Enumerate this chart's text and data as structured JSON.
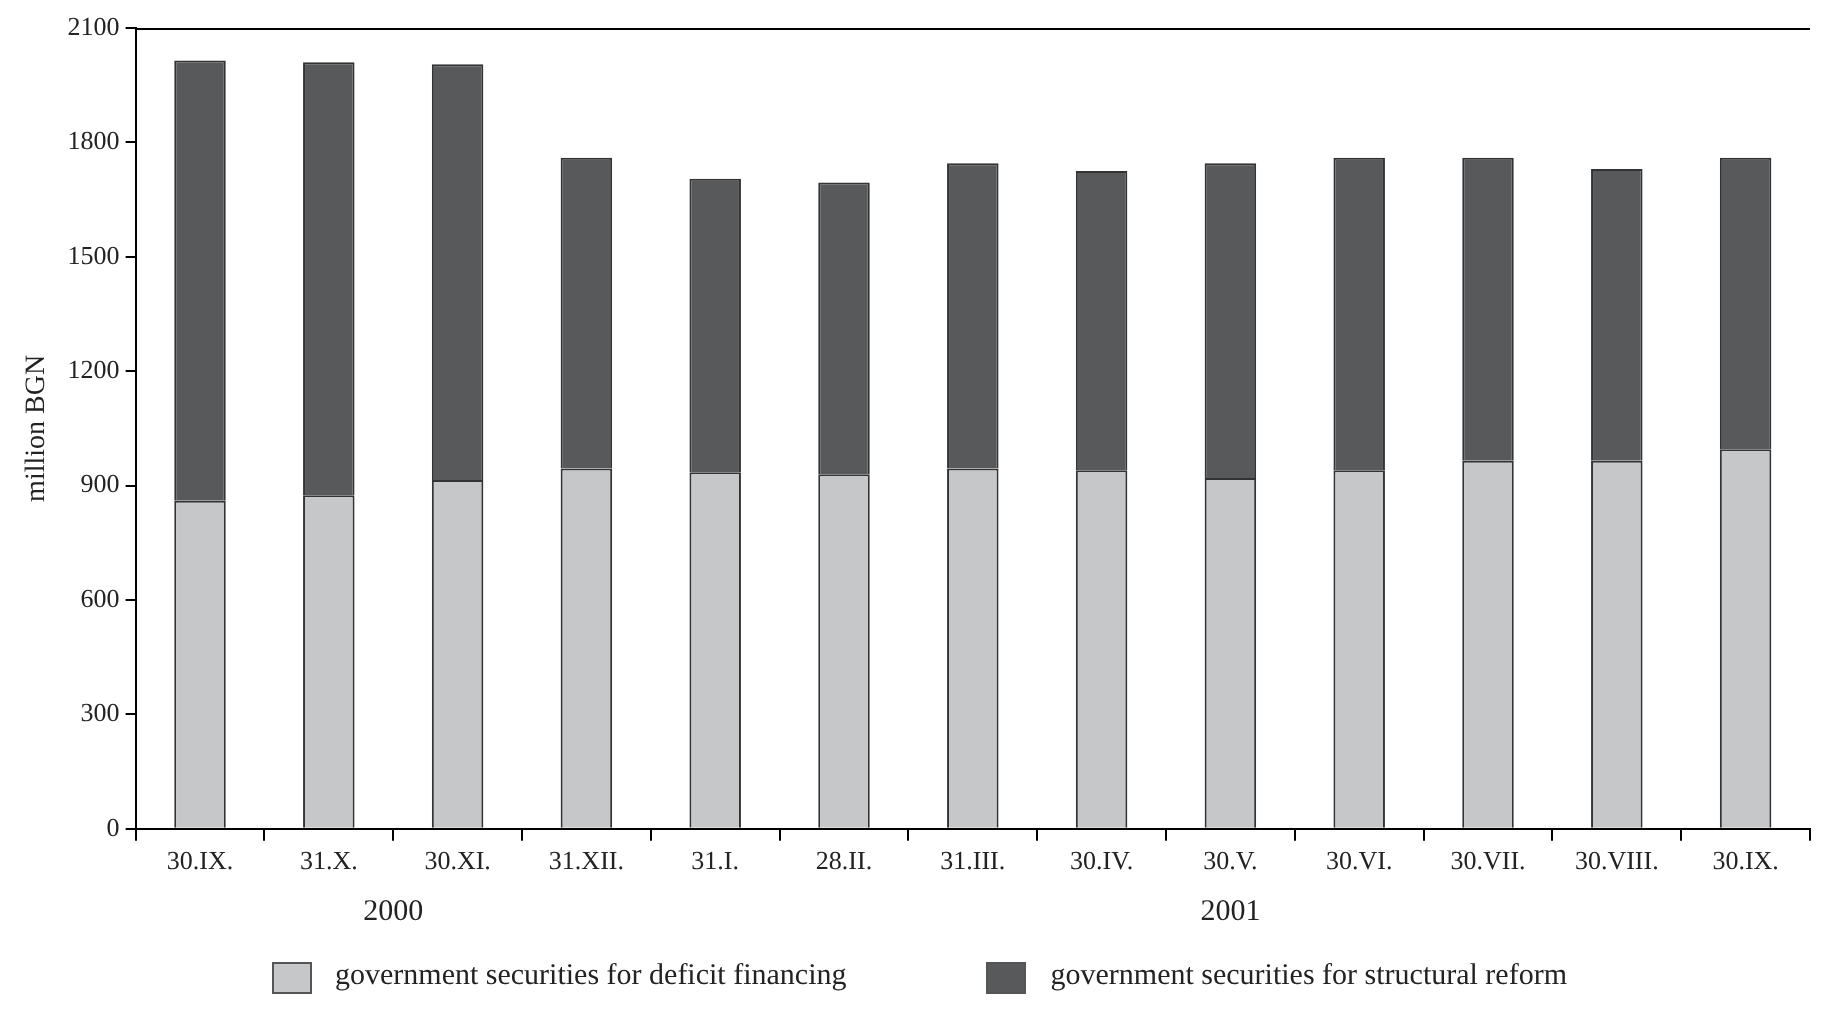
{
  "chart_data": {
    "type": "bar",
    "stacked": true,
    "ylabel": "million BGN",
    "categories": [
      "30.IX.",
      "31.X.",
      "30.XI.",
      "31.XII.",
      "31.I.",
      "28.II.",
      "31.III.",
      "30.IV.",
      "30.V.",
      "30.VI.",
      "30.VII.",
      "30.VIII.",
      "30.IX."
    ],
    "series": [
      {
        "name": "government securities for deficit financing",
        "color": "#c6c7c8",
        "values": [
          860,
          875,
          915,
          945,
          935,
          930,
          945,
          940,
          920,
          940,
          965,
          965,
          995
        ]
      },
      {
        "name": "government securities for structural reform",
        "color": "#58595b",
        "values": [
          1155,
          1135,
          1090,
          815,
          770,
          765,
          800,
          785,
          825,
          820,
          795,
          765,
          765
        ]
      }
    ],
    "ylim": [
      0,
      2100
    ],
    "yticks": [
      0,
      300,
      600,
      900,
      1200,
      1500,
      1800,
      2100
    ],
    "grid": false,
    "legend": "bottom",
    "annotations": [
      "2000",
      "2001"
    ]
  }
}
